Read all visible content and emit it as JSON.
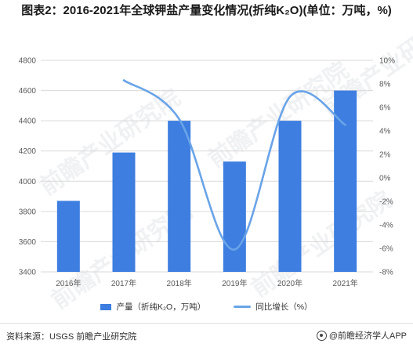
{
  "title": "图表2：2016-2021年全球钾盐产量变化情况(折纯K₂O)(单位：万吨，%)",
  "source": "资料来源：USGS 前瞻产业研究院",
  "brand": "@前瞻经济学人APP",
  "watermark": "前瞻产业研究院",
  "colors": {
    "bar": "#3d7ee0",
    "line": "#6aa4e8",
    "grid": "#d9d9d9"
  },
  "chart_data": {
    "type": "bar",
    "categories": [
      "2016年",
      "2017年",
      "2018年",
      "2019年",
      "2020年",
      "2021年"
    ],
    "series": [
      {
        "name": "产量（折纯K₂O，万吨）",
        "type": "bar",
        "axis": "left",
        "values": [
          3870,
          4190,
          4400,
          4130,
          4400,
          4600
        ]
      },
      {
        "name": "同比增长（%）",
        "type": "line",
        "axis": "right",
        "values": [
          null,
          8.3,
          5.0,
          -6.1,
          6.9,
          4.5
        ]
      }
    ],
    "y_left": {
      "ylim": [
        3400,
        4800
      ],
      "ticks": [
        "3400",
        "3600",
        "3800",
        "4000",
        "4200",
        "4400",
        "4600",
        "4800"
      ]
    },
    "y_right": {
      "ylim": [
        -8,
        10
      ],
      "ticks": [
        "-8%",
        "-6%",
        "-4%",
        "-2%",
        "0%",
        "2%",
        "4%",
        "6%",
        "8%",
        "10%"
      ]
    },
    "grid": "horizontal",
    "legend": "bottom"
  }
}
